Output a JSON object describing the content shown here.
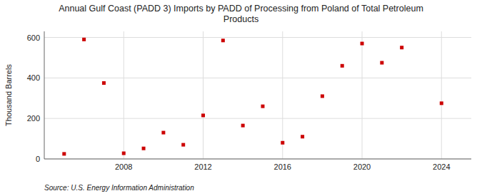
{
  "chart_data": {
    "type": "scatter",
    "title": "Annual Gulf Coast (PADD 3) Imports by PADD of Processing from Poland of Total Petroleum\nProducts",
    "y_label": "Thousand Barrels",
    "source": "Source: U.S. Energy Information Administration",
    "x": [
      2005,
      2006,
      2007,
      2008,
      2009,
      2010,
      2011,
      2012,
      2013,
      2014,
      2015,
      2016,
      2017,
      2018,
      2019,
      2020,
      2021,
      2022,
      2024
    ],
    "values": [
      25,
      590,
      375,
      28,
      52,
      130,
      70,
      215,
      585,
      165,
      260,
      80,
      110,
      310,
      460,
      570,
      475,
      550,
      275
    ],
    "color": "#cc0000",
    "marker": "square",
    "xlim": [
      2004.0,
      2025.5
    ],
    "ylim": [
      0,
      630
    ],
    "xticks": [
      2008,
      2012,
      2016,
      2020,
      2024
    ],
    "yticks": [
      0,
      200,
      400,
      600
    ],
    "grid": true
  }
}
